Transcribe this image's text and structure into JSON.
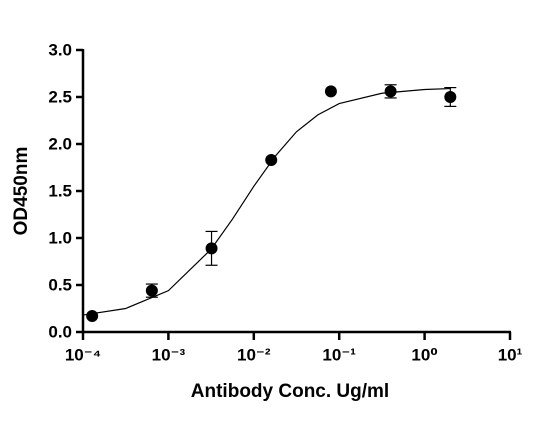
{
  "chart_data": {
    "type": "scatter",
    "x_label": "Antibody Conc. Ug/ml",
    "y_label": "OD450nm",
    "log_x": true,
    "series": [
      {
        "color": "#000000",
        "x": [
          0.000128,
          0.00064,
          0.0032,
          0.016,
          0.08,
          0.4,
          2
        ],
        "values": [
          0.17,
          0.44,
          0.89,
          1.83,
          2.56,
          2.56,
          2.5
        ],
        "errors": [
          null,
          0.07,
          0.18,
          null,
          null,
          0.07,
          0.1
        ]
      }
    ],
    "curve": {
      "color": "#000000",
      "x": [
        0.0001,
        0.000316,
        0.001,
        0.00316,
        0.00562,
        0.01,
        0.0178,
        0.0316,
        0.0562,
        0.1,
        0.316,
        1,
        2
      ],
      "values": [
        0.18,
        0.25,
        0.44,
        0.88,
        1.2,
        1.55,
        1.87,
        2.13,
        2.31,
        2.43,
        2.54,
        2.58,
        2.59
      ]
    },
    "xlim": [
      0.0001,
      10
    ],
    "xticks": [
      {
        "value": 0.0001,
        "label": "10⁻⁴"
      },
      {
        "value": 0.001,
        "label": "10⁻³"
      },
      {
        "value": 0.01,
        "label": "10⁻²"
      },
      {
        "value": 0.1,
        "label": "10⁻¹"
      },
      {
        "value": 1,
        "label": "10⁰"
      },
      {
        "value": 10,
        "label": "10¹"
      }
    ],
    "ylim": [
      0,
      3
    ],
    "yticks": [
      {
        "value": 0,
        "label": "0.0"
      },
      {
        "value": 0.5,
        "label": "0.5"
      },
      {
        "value": 1,
        "label": "1.0"
      },
      {
        "value": 1.5,
        "label": "1.5"
      },
      {
        "value": 2,
        "label": "2.0"
      },
      {
        "value": 2.5,
        "label": "2.5"
      },
      {
        "value": 3,
        "label": "3.0"
      }
    ]
  }
}
